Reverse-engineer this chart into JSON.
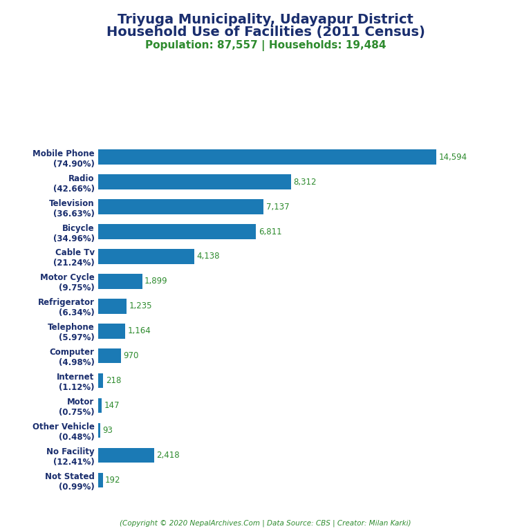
{
  "title_line1": "Triyuga Municipality, Udayapur District",
  "title_line2": "Household Use of Facilities (2011 Census)",
  "subtitle": "Population: 87,557 | Households: 19,484",
  "footer": "(Copyright © 2020 NepalArchives.Com | Data Source: CBS | Creator: Milan Karki)",
  "categories": [
    "Mobile Phone\n(74.90%)",
    "Radio\n(42.66%)",
    "Television\n(36.63%)",
    "Bicycle\n(34.96%)",
    "Cable Tv\n(21.24%)",
    "Motor Cycle\n(9.75%)",
    "Refrigerator\n(6.34%)",
    "Telephone\n(5.97%)",
    "Computer\n(4.98%)",
    "Internet\n(1.12%)",
    "Motor\n(0.75%)",
    "Other Vehicle\n(0.48%)",
    "No Facility\n(12.41%)",
    "Not Stated\n(0.99%)"
  ],
  "values": [
    14594,
    8312,
    7137,
    6811,
    4138,
    1899,
    1235,
    1164,
    970,
    218,
    147,
    93,
    2418,
    192
  ],
  "value_labels": [
    "14,594",
    "8,312",
    "7,137",
    "6,811",
    "4,138",
    "1,899",
    "1,235",
    "1,164",
    "970",
    "218",
    "147",
    "93",
    "2,418",
    "192"
  ],
  "bar_color": "#1b7ab5",
  "title_color": "#1a2e6e",
  "subtitle_color": "#2e8b2e",
  "value_color": "#2e8b2e",
  "footer_color": "#2e8b2e",
  "label_color": "#1a2e6e",
  "bg_color": "#ffffff",
  "xlim": [
    0,
    16500
  ],
  "title_fontsize": 14,
  "subtitle_fontsize": 11,
  "label_fontsize": 8.5,
  "value_fontsize": 8.5,
  "footer_fontsize": 7.5
}
